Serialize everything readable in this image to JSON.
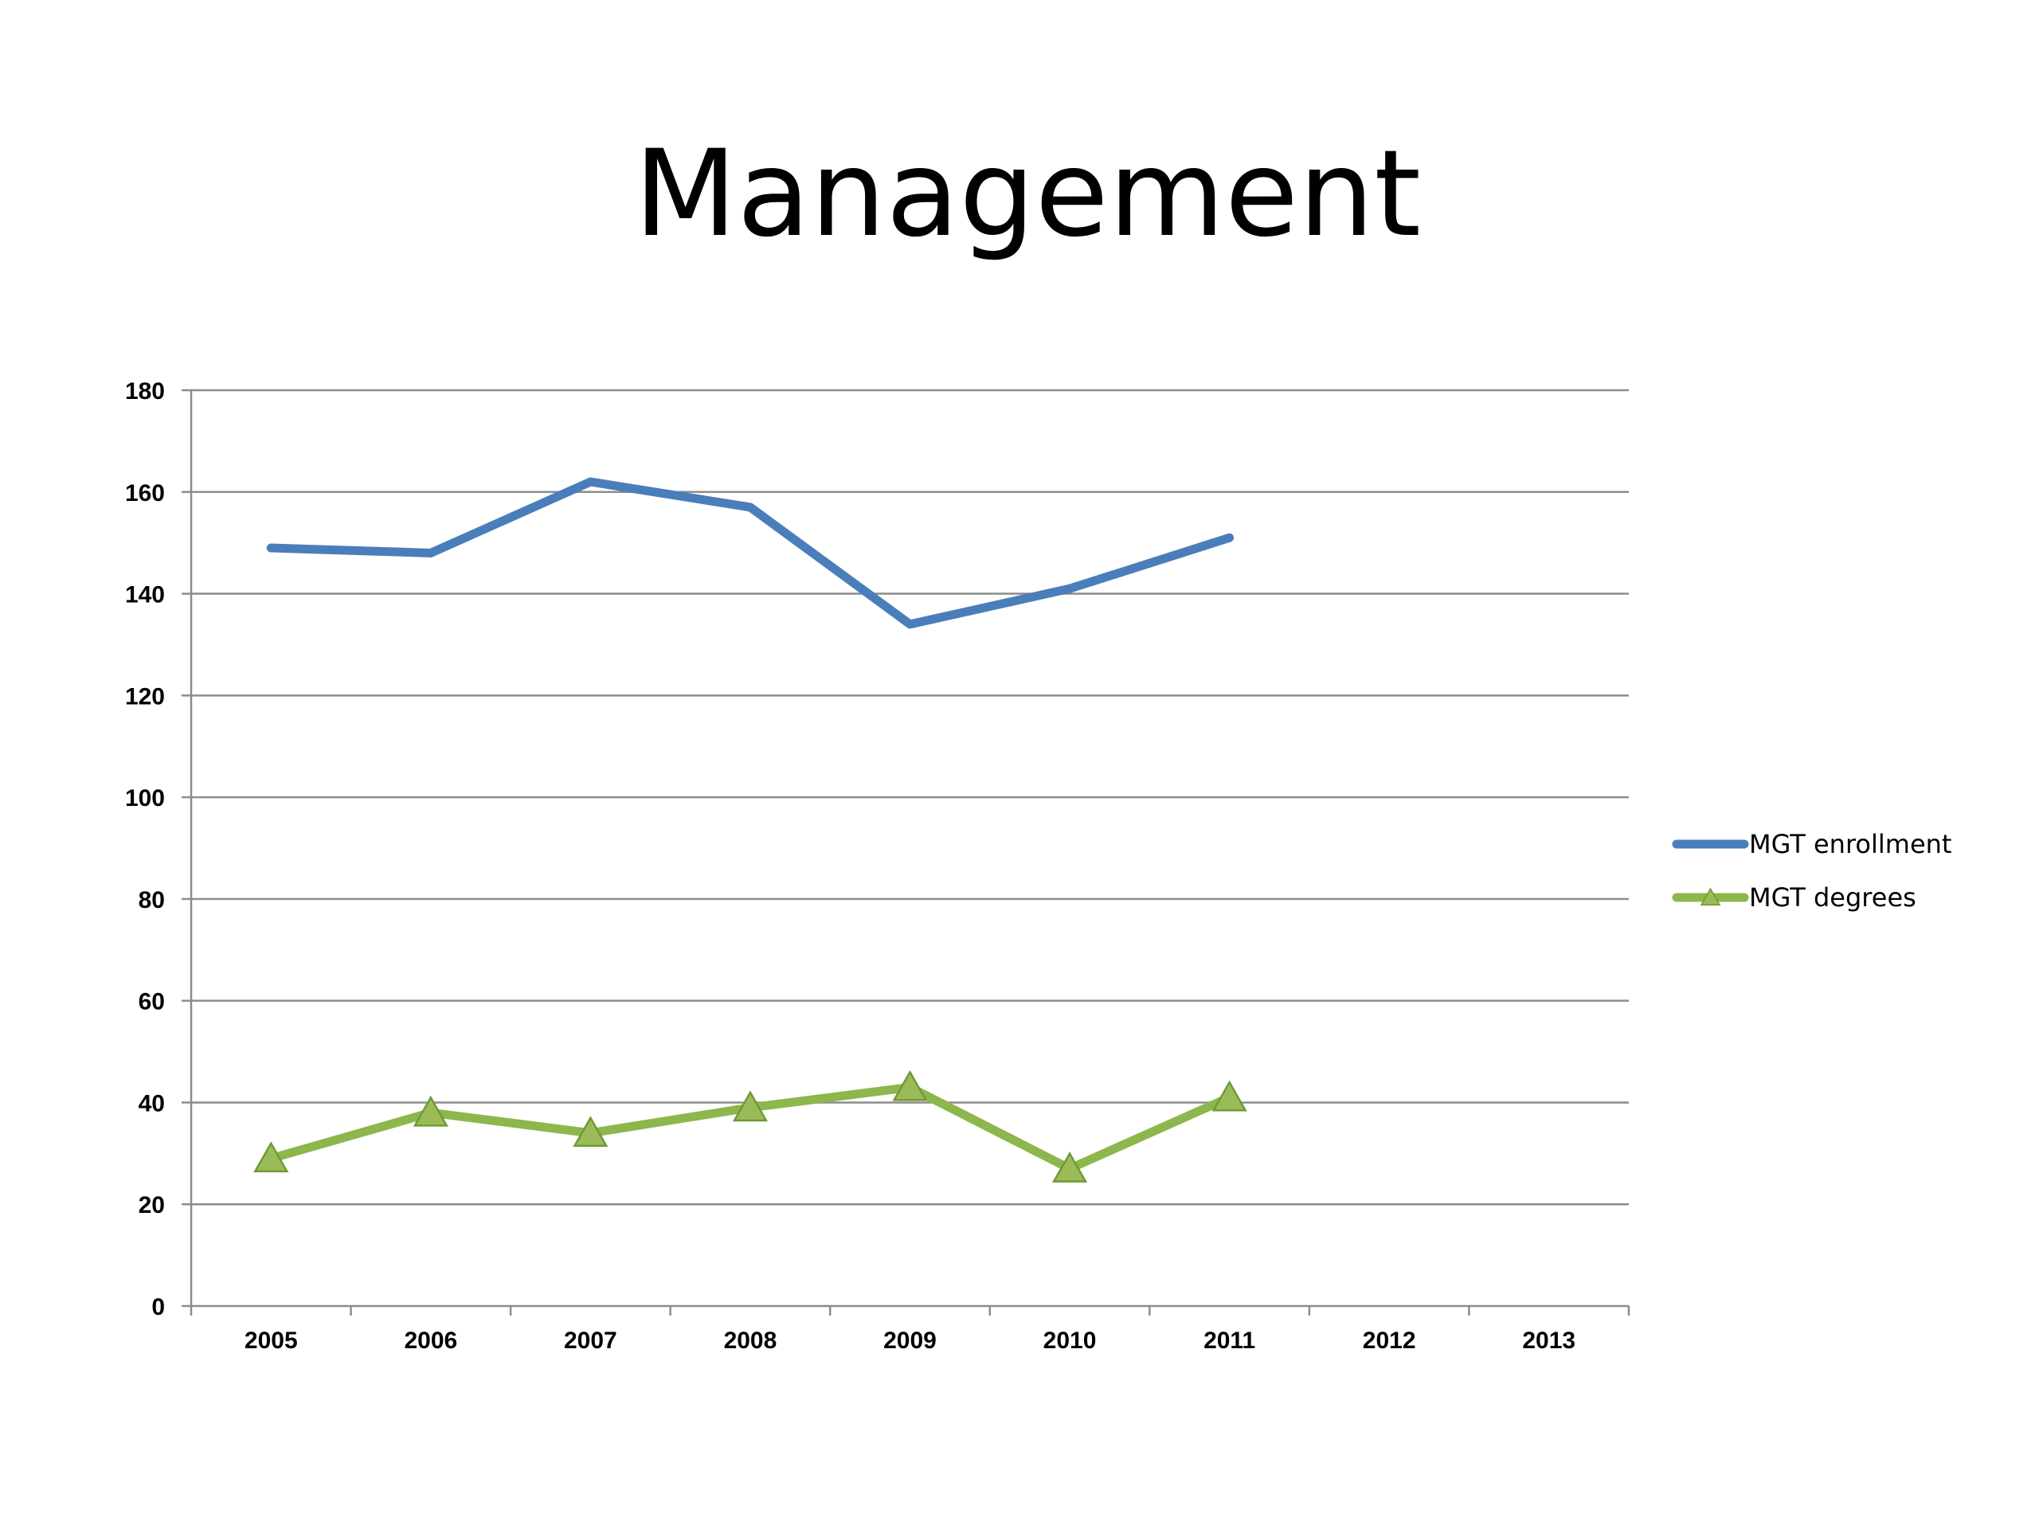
{
  "slide": {
    "title": "Management"
  },
  "chart_data": {
    "type": "line",
    "title": "Management",
    "categories": [
      "2005",
      "2006",
      "2007",
      "2008",
      "2009",
      "2010",
      "2011",
      "2012",
      "2013"
    ],
    "series": [
      {
        "name": "MGT enrollment",
        "color": "#4a7ebb",
        "marker": "none",
        "values": [
          149,
          148,
          162,
          157,
          134,
          141,
          151,
          null,
          null
        ]
      },
      {
        "name": "MGT degrees",
        "color": "#8db64c",
        "marker": "triangle",
        "values": [
          29,
          38,
          34,
          39,
          43,
          27,
          41,
          null,
          null
        ]
      }
    ],
    "y_ticks": [
      "0",
      "20",
      "40",
      "60",
      "80",
      "100",
      "120",
      "140",
      "160",
      "180"
    ],
    "ylim": [
      0,
      180
    ],
    "grid": true,
    "legend_position": "right"
  }
}
